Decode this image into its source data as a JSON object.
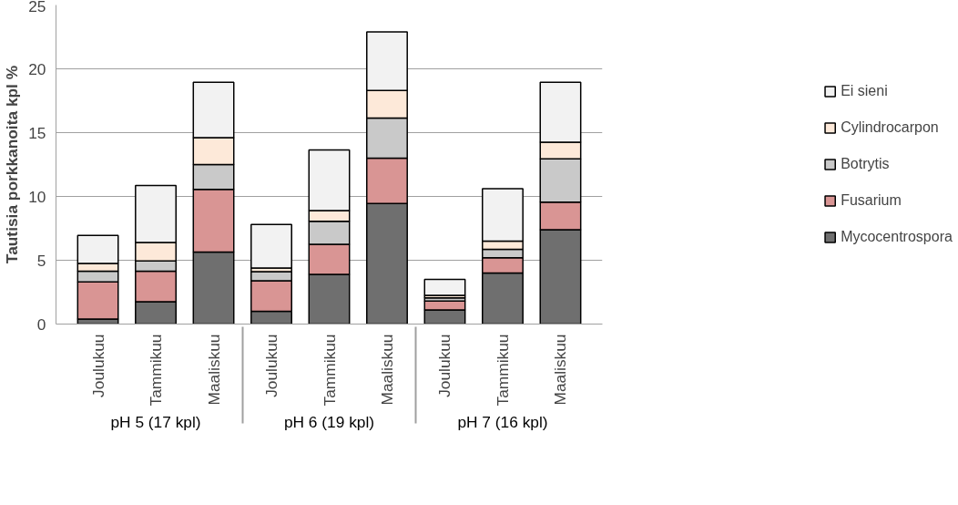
{
  "chart_data": {
    "type": "bar",
    "stacked": true,
    "ylabel": "Tautisia porkkanoita kpl %",
    "categories": [
      "Joulukuu",
      "Tammikuu",
      "Maaliskuu",
      "Joulukuu",
      "Tammikuu",
      "Maaliskuu",
      "Joulukuu",
      "Tammikuu",
      "Maaliskuu"
    ],
    "annotations": [
      "pH 5 (17 kpl)",
      "pH 6 (19 kpl)",
      "pH 7 (16 kpl)"
    ],
    "series": [
      {
        "name": "Mycocentrospora",
        "color": "#6f6f6f",
        "values": [
          0.4,
          1.75,
          5.65,
          1.0,
          3.9,
          9.45,
          1.1,
          4.0,
          7.4
        ]
      },
      {
        "name": "Fusarium",
        "color": "#d99594",
        "values": [
          2.9,
          2.4,
          4.9,
          2.4,
          2.35,
          3.55,
          0.7,
          1.2,
          2.15
        ]
      },
      {
        "name": "Botrytis",
        "color": "#c9c9c9",
        "values": [
          0.85,
          0.8,
          1.95,
          0.7,
          1.8,
          3.15,
          0.25,
          0.65,
          3.4
        ]
      },
      {
        "name": "Cylindrocarpon",
        "color": "#fde9d9",
        "values": [
          0.6,
          1.45,
          2.1,
          0.3,
          0.85,
          2.15,
          0.2,
          0.65,
          1.3
        ]
      },
      {
        "name": "Ei sieni",
        "color": "#f2f2f2",
        "values": [
          2.2,
          4.45,
          4.35,
          3.4,
          4.75,
          4.6,
          1.25,
          4.1,
          4.7
        ]
      }
    ],
    "ylim": [
      0,
      25
    ],
    "yticks": [
      0,
      5,
      10,
      15,
      20,
      25
    ],
    "grid": "y",
    "legend": "right"
  }
}
